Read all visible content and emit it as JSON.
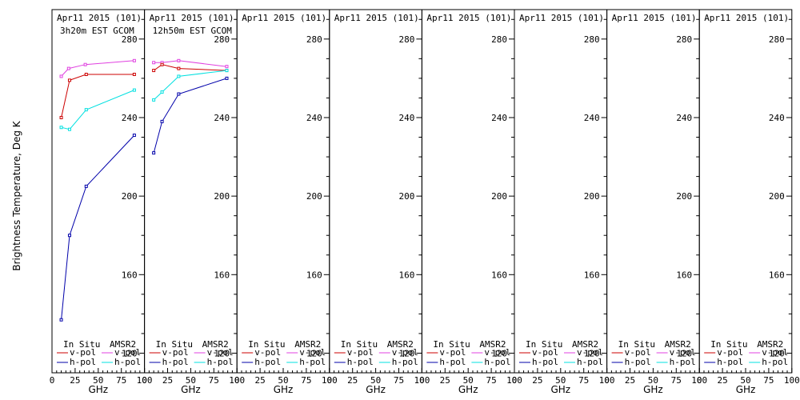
{
  "chart_data": {
    "type": "line",
    "ylabel": "Brightness Temperature, Deg K",
    "xlabel": "GHz",
    "ylim": [
      110,
      295
    ],
    "xlim": [
      0,
      100
    ],
    "y_ticks": [
      120,
      160,
      200,
      240,
      280
    ],
    "x_ticks": [
      "0",
      "25",
      "50",
      "75",
      "100"
    ],
    "legend": {
      "left_header": "In Situ",
      "right_header": "AMSR2",
      "left_items": [
        "v-pol",
        "h-pol"
      ],
      "right_items": [
        "v-pol",
        "h-pol"
      ],
      "placement": "bottom"
    },
    "colors": {
      "insitu_v": "#cc0000",
      "insitu_h": "#0000aa",
      "amsr2_v": "#e040e0",
      "amsr2_h": "#00e0e0"
    },
    "panels": [
      {
        "title": "Apr11 2015 (101)",
        "subtitle": "3h20m EST GCOM",
        "series": [
          {
            "key": "amsr2_v",
            "x": [
              10,
              18,
              36,
              89
            ],
            "y": [
              261,
              265,
              267,
              269
            ]
          },
          {
            "key": "insitu_v",
            "x": [
              10,
              19,
              37,
              89
            ],
            "y": [
              240,
              259,
              262,
              262
            ]
          },
          {
            "key": "amsr2_h",
            "x": [
              10,
              19,
              37,
              89
            ],
            "y": [
              235,
              234,
              244,
              254
            ]
          },
          {
            "key": "insitu_h",
            "x": [
              10,
              19,
              37,
              89
            ],
            "y": [
              137,
              180,
              205,
              231
            ]
          }
        ]
      },
      {
        "title": "Apr11 2015 (101)",
        "subtitle": "12h50m EST GCOM",
        "series": [
          {
            "key": "amsr2_v",
            "x": [
              10,
              19,
              37,
              89
            ],
            "y": [
              268,
              268,
              269,
              266
            ]
          },
          {
            "key": "insitu_v",
            "x": [
              10,
              19,
              37,
              89
            ],
            "y": [
              264,
              267,
              265,
              264
            ]
          },
          {
            "key": "amsr2_h",
            "x": [
              10,
              19,
              37,
              89
            ],
            "y": [
              249,
              253,
              261,
              264
            ]
          },
          {
            "key": "insitu_h",
            "x": [
              10,
              19,
              37,
              89
            ],
            "y": [
              222,
              238,
              252,
              260
            ]
          }
        ]
      },
      {
        "title": "Apr11 2015 (101)",
        "subtitle": "",
        "series": []
      },
      {
        "title": "Apr11 2015 (101)",
        "subtitle": "",
        "series": []
      },
      {
        "title": "Apr11 2015 (101)",
        "subtitle": "",
        "series": []
      },
      {
        "title": "Apr11 2015 (101)",
        "subtitle": "",
        "series": []
      },
      {
        "title": "Apr11 2015 (101)",
        "subtitle": "",
        "series": []
      },
      {
        "title": "Apr11 2015 (101)",
        "subtitle": "",
        "series": []
      }
    ]
  }
}
